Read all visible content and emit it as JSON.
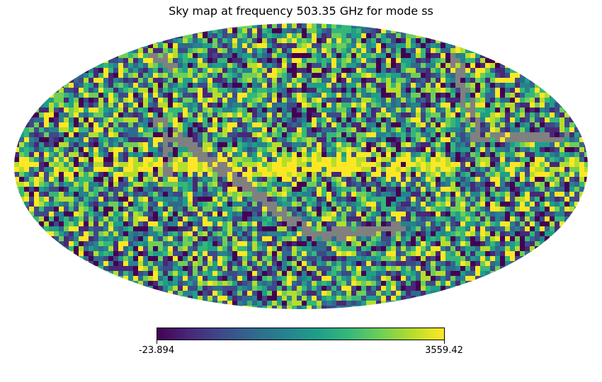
{
  "title": "Sky map at frequency 503.35 GHz for mode ss",
  "projection": "mollweide",
  "colormap": {
    "name": "viridis",
    "stops": [
      "#440154",
      "#482878",
      "#3e4989",
      "#31688e",
      "#26828e",
      "#1f9e89",
      "#35b779",
      "#6ece58",
      "#b5de2b",
      "#fde725"
    ],
    "bad_color": "#808080"
  },
  "colorbar": {
    "min_label": "-23.894",
    "max_label": "3559.42"
  }
}
